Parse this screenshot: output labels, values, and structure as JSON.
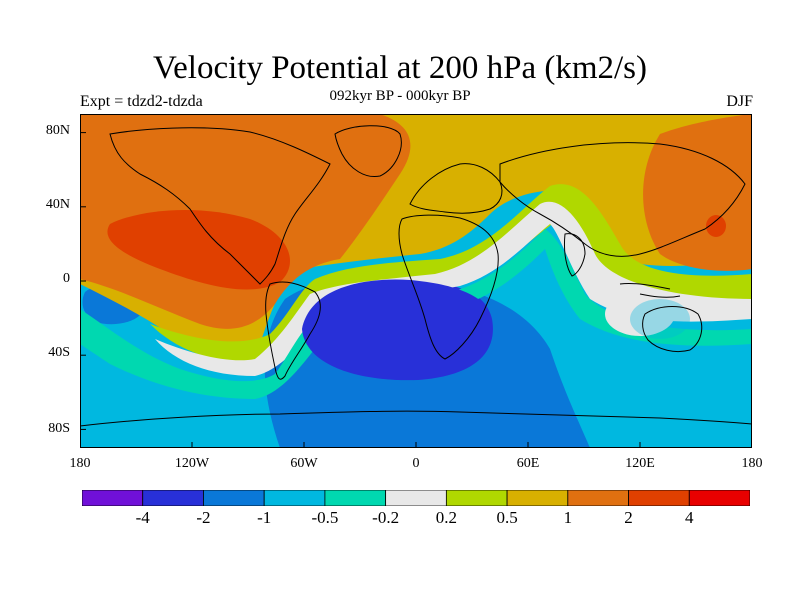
{
  "title": "Velocity Potential at 200 hPa (km2/s)",
  "subtitle": "092kyr BP - 000kyr BP",
  "experiment": "Expt = tdzd2-tdzda",
  "season": "DJF",
  "map": {
    "lat_ticks": [
      "80N",
      "40N",
      "0",
      "40S",
      "80S"
    ],
    "lon_ticks": [
      "180",
      "120W",
      "60W",
      "0",
      "60E",
      "120E",
      "180"
    ]
  },
  "colorbar": {
    "colors": [
      "#7010d8",
      "#2830d8",
      "#0a78d8",
      "#00b8e0",
      "#00d8b0",
      "#e8e8e8",
      "#b0d800",
      "#d8b000",
      "#e07010",
      "#e04000",
      "#e80000"
    ],
    "labels": [
      "-4",
      "-2",
      "-1",
      "-0.5",
      "-0.2",
      "0.2",
      "0.5",
      "1",
      "2",
      "4"
    ]
  }
}
